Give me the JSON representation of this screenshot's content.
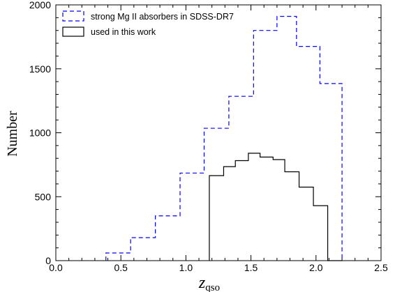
{
  "chart_data": {
    "type": "histogram",
    "xlabel": "z",
    "xlabel_subscript": "qso",
    "ylabel": "Number",
    "xlim": [
      0.0,
      2.5
    ],
    "ylim": [
      0,
      2000
    ],
    "xticks": [
      "0.0",
      "0.5",
      "1.0",
      "1.5",
      "2.0",
      "2.5"
    ],
    "yticks": [
      "0",
      "500",
      "1000",
      "1500",
      "2000"
    ],
    "grid": false,
    "legend_position": "top-left",
    "series": [
      {
        "name": "strong Mg II absorbers in SDSS-DR7",
        "color": "#0000ff",
        "style": "dashed",
        "bin_edges": [
          0.385,
          0.575,
          0.765,
          0.955,
          1.14,
          1.33,
          1.52,
          1.7,
          1.85,
          2.03,
          2.2
        ],
        "values": [
          60,
          180,
          350,
          685,
          1035,
          1285,
          1800,
          1910,
          1675,
          1385
        ]
      },
      {
        "name": "used in this work",
        "color": "#000000",
        "style": "solid",
        "bin_edges": [
          1.18,
          1.29,
          1.38,
          1.48,
          1.57,
          1.67,
          1.76,
          1.87,
          1.98,
          2.09,
          2.2
        ],
        "values": [
          665,
          735,
          782,
          840,
          810,
          790,
          695,
          575,
          430,
          0
        ]
      }
    ]
  }
}
